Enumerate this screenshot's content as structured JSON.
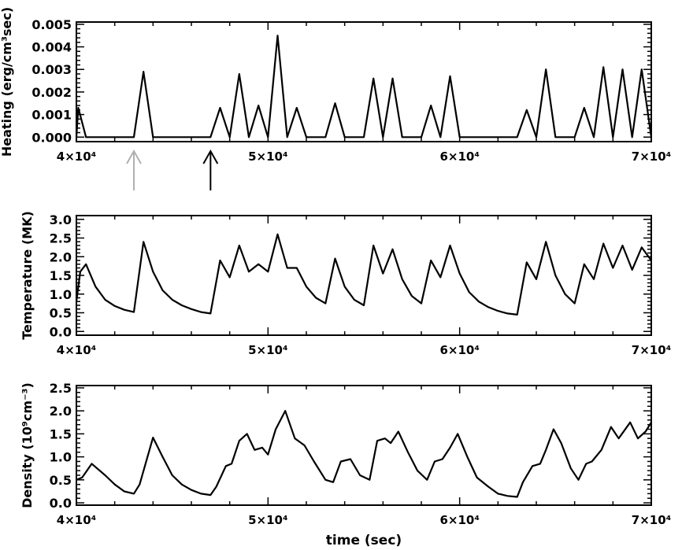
{
  "figure": {
    "xlabel": "time (sec)"
  },
  "colors": {
    "gray_arrow": "#b0b0b0",
    "black_arrow": "#000000",
    "line": "#000000"
  },
  "chart_data": [
    {
      "id": "heating",
      "type": "line",
      "ylabel": "Heating (erg/cm³sec)",
      "xlim": [
        40000,
        70000
      ],
      "ylim": [
        -0.0002,
        0.0051
      ],
      "xticks": [
        40000,
        50000,
        60000,
        70000
      ],
      "xticklabels": [
        "4×10⁴",
        "5×10⁴",
        "6×10⁴",
        "7×10⁴"
      ],
      "yticks": [
        0,
        0.001,
        0.002,
        0.003,
        0.004,
        0.005
      ],
      "yticklabels": [
        "0.000",
        "0.001",
        "0.002",
        "0.003",
        "0.004",
        "0.005"
      ],
      "grid": false,
      "annotations": [
        {
          "type": "arrow",
          "x": 43000,
          "color": "gray"
        },
        {
          "type": "arrow",
          "x": 47000,
          "color": "black"
        }
      ],
      "series": [
        {
          "x": [
            40000,
            40100,
            40500,
            43000,
            43500,
            44000,
            47000,
            47500,
            48000,
            48500,
            49000,
            49500,
            50000,
            50500,
            51000,
            51500,
            52000,
            53000,
            53500,
            54000,
            55000,
            55500,
            56000,
            56500,
            57000,
            58000,
            58500,
            59000,
            59500,
            60000,
            63000,
            63500,
            64000,
            64500,
            65000,
            66000,
            66500,
            67000,
            67500,
            68000,
            68500,
            69000,
            69500,
            70000
          ],
          "y": [
            0,
            0.0013,
            0,
            0,
            0.0029,
            0,
            0,
            0.0013,
            0,
            0.0028,
            0,
            0.0014,
            0,
            0.0045,
            0,
            0.0013,
            0,
            0,
            0.0015,
            0,
            0,
            0.0026,
            0,
            0.0026,
            0,
            0,
            0.0014,
            0,
            0.0027,
            0,
            0,
            0.0012,
            0,
            0.003,
            0,
            0,
            0.0013,
            0,
            0.0031,
            0,
            0.003,
            0,
            0.003,
            0
          ]
        }
      ]
    },
    {
      "id": "temperature",
      "type": "line",
      "ylabel": "Temperature (MK)",
      "xlim": [
        40000,
        70000
      ],
      "ylim": [
        -0.1,
        3.1
      ],
      "xticks": [
        40000,
        50000,
        60000,
        70000
      ],
      "xticklabels": [
        "4×10⁴",
        "5×10⁴",
        "6×10⁴",
        "7×10⁴"
      ],
      "yticks": [
        0,
        0.5,
        1,
        1.5,
        2,
        2.5,
        3
      ],
      "yticklabels": [
        "0.0",
        "0.5",
        "1.0",
        "1.5",
        "2.0",
        "2.5",
        "3.0"
      ],
      "grid": false,
      "series": [
        {
          "x": [
            40000,
            40200,
            40500,
            41000,
            41500,
            42000,
            42500,
            43000,
            43500,
            44000,
            44500,
            45000,
            45500,
            46000,
            46500,
            47000,
            47500,
            48000,
            48500,
            49000,
            49500,
            50000,
            50500,
            51000,
            51500,
            52000,
            52500,
            53000,
            53500,
            54000,
            54500,
            55000,
            55500,
            56000,
            56500,
            57000,
            57500,
            58000,
            58500,
            59000,
            59500,
            60000,
            60500,
            61000,
            61500,
            62000,
            62500,
            63000,
            63500,
            64000,
            64500,
            65000,
            65500,
            66000,
            66500,
            67000,
            67500,
            68000,
            68500,
            69000,
            69500,
            70000
          ],
          "y": [
            0.8,
            1.6,
            1.8,
            1.2,
            0.85,
            0.68,
            0.58,
            0.52,
            2.4,
            1.6,
            1.1,
            0.85,
            0.7,
            0.6,
            0.52,
            0.48,
            1.9,
            1.45,
            2.3,
            1.6,
            1.8,
            1.6,
            2.6,
            1.7,
            1.7,
            1.2,
            0.9,
            0.75,
            1.95,
            1.2,
            0.85,
            0.7,
            2.3,
            1.55,
            2.2,
            1.4,
            0.95,
            0.75,
            1.9,
            1.45,
            2.3,
            1.55,
            1.05,
            0.8,
            0.65,
            0.55,
            0.48,
            0.45,
            1.85,
            1.4,
            2.4,
            1.5,
            1.0,
            0.75,
            1.8,
            1.4,
            2.35,
            1.7,
            2.3,
            1.65,
            2.25,
            1.9
          ]
        }
      ]
    },
    {
      "id": "density",
      "type": "line",
      "ylabel": "Density (10⁹cm⁻³)",
      "xlim": [
        40000,
        70000
      ],
      "ylim": [
        -0.05,
        2.55
      ],
      "xticks": [
        40000,
        50000,
        60000,
        70000
      ],
      "xticklabels": [
        "4×10⁴",
        "5×10⁴",
        "6×10⁴",
        "7×10⁴"
      ],
      "yticks": [
        0,
        0.5,
        1,
        1.5,
        2,
        2.5
      ],
      "yticklabels": [
        "0.0",
        "0.5",
        "1.0",
        "1.5",
        "2.0",
        "2.5"
      ],
      "grid": false,
      "series": [
        {
          "x": [
            40000,
            40300,
            40800,
            41500,
            42000,
            42500,
            43000,
            43300,
            44000,
            44500,
            45000,
            45500,
            46000,
            46500,
            47000,
            47300,
            47800,
            48100,
            48500,
            48900,
            49300,
            49700,
            50000,
            50400,
            50900,
            51400,
            51900,
            52400,
            53000,
            53400,
            53800,
            54300,
            54800,
            55300,
            55700,
            56100,
            56400,
            56800,
            57300,
            57800,
            58300,
            58700,
            59100,
            59500,
            59900,
            60400,
            60900,
            61500,
            62000,
            62500,
            63000,
            63300,
            63800,
            64200,
            64500,
            64900,
            65300,
            65800,
            66200,
            66600,
            66900,
            67400,
            67900,
            68300,
            68900,
            69300,
            69700,
            70000
          ],
          "y": [
            0.5,
            0.55,
            0.85,
            0.6,
            0.4,
            0.25,
            0.2,
            0.4,
            1.42,
            1.0,
            0.6,
            0.4,
            0.28,
            0.2,
            0.17,
            0.35,
            0.8,
            0.85,
            1.35,
            1.5,
            1.15,
            1.2,
            1.05,
            1.6,
            2.0,
            1.4,
            1.25,
            0.9,
            0.5,
            0.45,
            0.9,
            0.95,
            0.6,
            0.5,
            1.35,
            1.4,
            1.3,
            1.55,
            1.1,
            0.7,
            0.5,
            0.9,
            0.95,
            1.2,
            1.5,
            1.0,
            0.55,
            0.35,
            0.2,
            0.15,
            0.13,
            0.45,
            0.8,
            0.85,
            1.15,
            1.6,
            1.3,
            0.75,
            0.5,
            0.85,
            0.9,
            1.15,
            1.65,
            1.4,
            1.75,
            1.4,
            1.55,
            1.75
          ]
        }
      ]
    }
  ]
}
